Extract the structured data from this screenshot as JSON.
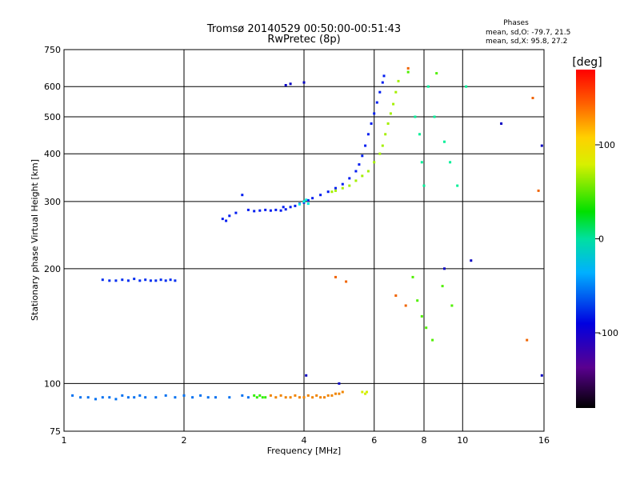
{
  "chart_data": {
    "type": "scatter",
    "title": "Tromsø 20140529 00:50:00-00:51:43",
    "subtitle": "RwPretec (8p)",
    "xlabel": "Frequency [MHz]",
    "ylabel": "Stationary phase Virtual Height [km]",
    "x_scale": "log",
    "y_scale": "log",
    "xlim": [
      1,
      16
    ],
    "ylim": [
      75,
      750
    ],
    "x_ticks": [
      {
        "value": 1,
        "label": "1"
      },
      {
        "value": 2,
        "label": "2"
      },
      {
        "value": 4,
        "label": "4"
      },
      {
        "value": 6,
        "label": "6"
      },
      {
        "value": 8,
        "label": "8"
      },
      {
        "value": 10,
        "label": "10"
      },
      {
        "value": 16,
        "label": "16"
      }
    ],
    "y_ticks": [
      {
        "value": 75,
        "label": "75"
      },
      {
        "value": 100,
        "label": "100"
      },
      {
        "value": 200,
        "label": "200"
      },
      {
        "value": 300,
        "label": "300"
      },
      {
        "value": 400,
        "label": "400"
      },
      {
        "value": 500,
        "label": "500"
      },
      {
        "value": 600,
        "label": "600"
      },
      {
        "value": 750,
        "label": "750"
      }
    ],
    "grid": true,
    "stats_title": "Phases",
    "stats_lines": [
      "mean, sd,O: -79.7, 21.5",
      "mean, sd,X:  95.8, 27.2"
    ],
    "colorbar": {
      "label": "[deg]",
      "range": [
        -180,
        180
      ],
      "ticks": [
        {
          "value": 100,
          "label": "100"
        },
        {
          "value": 0,
          "label": "0"
        },
        {
          "value": -100,
          "label": "-100"
        }
      ]
    },
    "series": [
      {
        "values": [
          [
            1.05,
            93
          ],
          [
            1.1,
            92
          ],
          [
            1.15,
            92
          ],
          [
            1.2,
            91
          ],
          [
            1.25,
            92
          ],
          [
            1.3,
            92
          ],
          [
            1.35,
            91
          ],
          [
            1.4,
            93
          ],
          [
            1.45,
            92
          ],
          [
            1.5,
            92
          ],
          [
            1.55,
            93
          ],
          [
            1.6,
            92
          ],
          [
            1.7,
            92
          ],
          [
            1.8,
            93
          ],
          [
            1.9,
            92
          ],
          [
            2.0,
            93
          ],
          [
            2.1,
            92
          ],
          [
            2.2,
            93
          ],
          [
            2.3,
            92
          ],
          [
            2.4,
            92
          ],
          [
            2.6,
            92
          ],
          [
            2.8,
            93
          ],
          [
            2.9,
            92
          ]
        ],
        "phase": -75
      },
      {
        "values": [
          [
            3.0,
            93
          ],
          [
            3.05,
            92
          ],
          [
            3.1,
            93
          ],
          [
            3.15,
            92
          ],
          [
            3.2,
            92
          ]
        ],
        "phase": 50
      },
      {
        "values": [
          [
            3.3,
            93
          ],
          [
            3.4,
            92
          ],
          [
            3.5,
            93
          ],
          [
            3.6,
            92
          ],
          [
            3.7,
            92
          ],
          [
            3.8,
            93
          ],
          [
            3.9,
            92
          ],
          [
            4.0,
            92
          ],
          [
            4.1,
            93
          ],
          [
            4.2,
            92
          ],
          [
            4.3,
            93
          ],
          [
            4.4,
            92
          ],
          [
            4.5,
            92
          ],
          [
            4.6,
            93
          ],
          [
            4.7,
            93
          ],
          [
            4.8,
            94
          ],
          [
            4.9,
            94
          ],
          [
            5.0,
            95
          ]
        ],
        "phase": 140
      },
      {
        "values": [
          [
            5.6,
            95
          ],
          [
            5.7,
            94
          ],
          [
            5.75,
            95
          ]
        ],
        "phase": 100
      },
      {
        "values": [
          [
            1.25,
            187
          ],
          [
            1.3,
            186
          ],
          [
            1.35,
            186
          ],
          [
            1.4,
            187
          ],
          [
            1.45,
            186
          ],
          [
            1.5,
            188
          ],
          [
            1.55,
            186
          ],
          [
            1.6,
            187
          ],
          [
            1.65,
            186
          ],
          [
            1.7,
            186
          ],
          [
            1.75,
            187
          ],
          [
            1.8,
            186
          ],
          [
            1.85,
            187
          ],
          [
            1.9,
            186
          ]
        ],
        "phase": -95
      },
      {
        "values": [
          [
            2.5,
            270
          ],
          [
            2.55,
            267
          ],
          [
            2.6,
            275
          ],
          [
            2.7,
            280
          ],
          [
            2.8,
            312
          ],
          [
            2.9,
            285
          ],
          [
            3.0,
            283
          ],
          [
            3.1,
            284
          ],
          [
            3.2,
            285
          ],
          [
            3.3,
            284
          ],
          [
            3.4,
            285
          ],
          [
            3.5,
            284
          ],
          [
            3.55,
            290
          ],
          [
            3.6,
            286
          ],
          [
            3.7,
            290
          ],
          [
            3.8,
            292
          ],
          [
            3.9,
            296
          ],
          [
            4.0,
            298
          ],
          [
            4.1,
            302
          ],
          [
            4.2,
            306
          ],
          [
            4.4,
            312
          ],
          [
            4.6,
            318
          ],
          [
            4.8,
            325
          ],
          [
            5.0,
            333
          ],
          [
            5.2,
            345
          ],
          [
            5.4,
            360
          ],
          [
            5.5,
            375
          ],
          [
            5.6,
            395
          ],
          [
            5.7,
            420
          ],
          [
            5.8,
            450
          ],
          [
            5.9,
            480
          ],
          [
            6.0,
            510
          ],
          [
            6.1,
            545
          ],
          [
            6.2,
            580
          ],
          [
            6.3,
            615
          ],
          [
            6.35,
            640
          ]
        ],
        "phase": -100
      },
      {
        "values": [
          [
            3.9,
            295
          ],
          [
            4.0,
            300
          ],
          [
            4.05,
            303
          ],
          [
            4.1,
            296
          ]
        ],
        "phase": -30
      },
      {
        "values": [
          [
            4.7,
            318
          ],
          [
            4.8,
            320
          ],
          [
            5.0,
            325
          ],
          [
            5.2,
            330
          ],
          [
            5.4,
            340
          ],
          [
            5.6,
            350
          ],
          [
            5.8,
            360
          ],
          [
            6.0,
            380
          ],
          [
            6.2,
            400
          ],
          [
            6.3,
            420
          ],
          [
            6.4,
            450
          ],
          [
            6.5,
            480
          ],
          [
            6.6,
            510
          ],
          [
            6.7,
            540
          ],
          [
            6.8,
            580
          ],
          [
            6.9,
            620
          ]
        ],
        "phase": 85
      },
      {
        "values": [
          [
            7.6,
            500
          ],
          [
            7.8,
            450
          ],
          [
            7.9,
            380
          ],
          [
            8.0,
            330
          ],
          [
            8.2,
            600
          ],
          [
            8.5,
            500
          ],
          [
            9.0,
            430
          ],
          [
            9.3,
            380
          ],
          [
            9.7,
            330
          ],
          [
            10.2,
            600
          ]
        ],
        "phase": -10
      },
      {
        "values": [
          [
            7.5,
            190
          ],
          [
            7.7,
            165
          ],
          [
            7.9,
            150
          ],
          [
            8.1,
            140
          ],
          [
            8.4,
            130
          ],
          [
            8.9,
            180
          ],
          [
            9.4,
            160
          ],
          [
            7.3,
            655
          ],
          [
            8.6,
            650
          ]
        ],
        "phase": 60
      },
      {
        "values": [
          [
            7.3,
            670
          ],
          [
            5.1,
            185
          ],
          [
            4.8,
            190
          ],
          [
            6.8,
            170
          ],
          [
            7.2,
            160
          ],
          [
            14.5,
            130
          ],
          [
            15.0,
            560
          ],
          [
            15.5,
            320
          ]
        ],
        "phase": 150
      },
      {
        "values": [
          [
            3.6,
            605
          ],
          [
            3.7,
            610
          ],
          [
            4.0,
            615
          ],
          [
            12.5,
            480
          ],
          [
            15.8,
            420
          ],
          [
            15.8,
            105
          ],
          [
            4.05,
            105
          ],
          [
            4.9,
            100
          ],
          [
            10.5,
            210
          ],
          [
            9.0,
            200
          ]
        ],
        "phase": -110
      }
    ]
  }
}
